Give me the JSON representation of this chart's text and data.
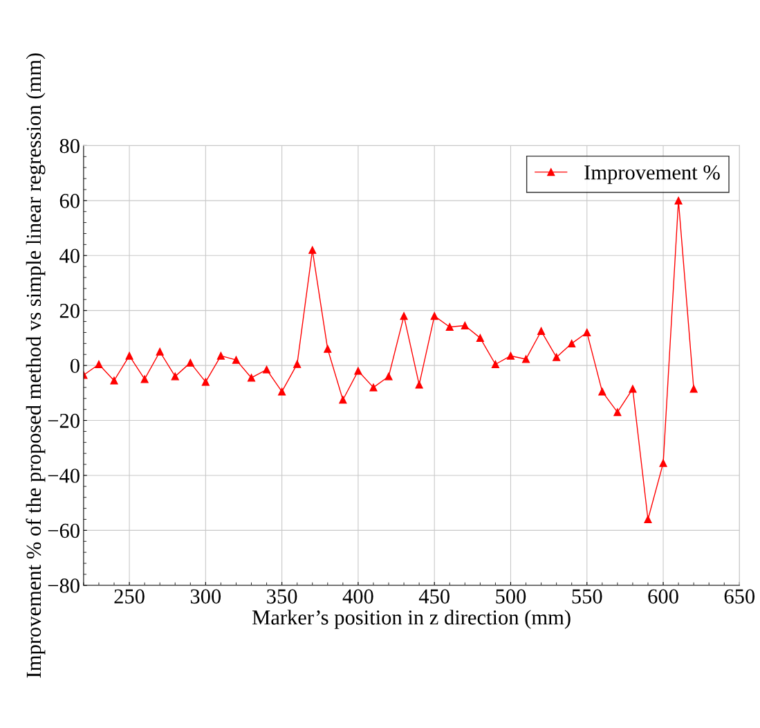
{
  "chart_data": {
    "type": "line",
    "xlabel": "Marker’s position in z direction (mm)",
    "ylabel": "Improvement % of the proposed method vs simple linear regression (mm)",
    "x": [
      220,
      230,
      240,
      250,
      260,
      270,
      280,
      290,
      300,
      310,
      320,
      330,
      340,
      350,
      360,
      370,
      380,
      390,
      400,
      410,
      420,
      430,
      440,
      450,
      460,
      470,
      480,
      490,
      500,
      510,
      520,
      530,
      540,
      550,
      560,
      570,
      580,
      590,
      600,
      610,
      620
    ],
    "series": [
      {
        "name": "Improvement %",
        "color": "#ff0000",
        "values": [
          -3.5,
          0.4,
          -5.5,
          3.5,
          -5,
          5,
          -4,
          1,
          -6,
          3.5,
          2,
          -4.5,
          -1.5,
          -9.5,
          0.5,
          42,
          6,
          -12.5,
          -2,
          -8,
          -4,
          18,
          -7,
          18,
          14,
          14.5,
          10,
          0.4,
          3.5,
          2.3,
          12.5,
          3,
          8,
          12,
          -9.5,
          -17,
          -8.5,
          -56,
          -35.5,
          60,
          -8.5
        ]
      }
    ],
    "xlim": [
      220,
      650
    ],
    "xticks": [
      250,
      300,
      350,
      400,
      450,
      500,
      550,
      600,
      650
    ],
    "ylim": [
      -80,
      80
    ],
    "yticks": [
      {
        "value": -80,
        "label": "−80"
      },
      {
        "value": -60,
        "label": "−60"
      },
      {
        "value": -40,
        "label": "−40"
      },
      {
        "value": -20,
        "label": "−20"
      },
      0,
      20,
      40,
      60,
      80
    ],
    "grid": true,
    "legend": "top right",
    "marker": "triangle",
    "line_style": "solid"
  }
}
